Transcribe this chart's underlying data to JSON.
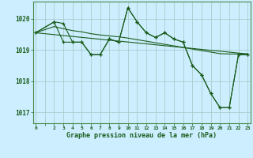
{
  "background_color": "#cceeff",
  "grid_color": "#aacccc",
  "line_color": "#1a5c1a",
  "text_color": "#1a5c1a",
  "xlabel": "Graphe pression niveau de la mer (hPa)",
  "ylim": [
    1016.65,
    1020.55
  ],
  "yticks": [
    1017,
    1018,
    1019,
    1020
  ],
  "xlim": [
    -0.3,
    23.3
  ],
  "xtick_labels": [
    "0",
    "",
    "2",
    "3",
    "4",
    "5",
    "6",
    "7",
    "8",
    "9",
    "10",
    "11",
    "12",
    "13",
    "14",
    "15",
    "16",
    "17",
    "18",
    "19",
    "20",
    "21",
    "22",
    "23"
  ],
  "xtick_positions": [
    0,
    1,
    2,
    3,
    4,
    5,
    6,
    7,
    8,
    9,
    10,
    11,
    12,
    13,
    14,
    15,
    16,
    17,
    18,
    19,
    20,
    21,
    22,
    23
  ],
  "series1_x": [
    0,
    2,
    3,
    4,
    5,
    6,
    7,
    8,
    9,
    10,
    11,
    12,
    13,
    14,
    15,
    16,
    17,
    18,
    19,
    20,
    21,
    22,
    23
  ],
  "series1_y": [
    1019.55,
    1019.9,
    1019.85,
    1019.25,
    1019.25,
    1018.85,
    1018.85,
    1019.35,
    1019.25,
    1020.35,
    1019.9,
    1019.55,
    1019.4,
    1019.55,
    1019.35,
    1019.25,
    1018.5,
    1018.2,
    1017.6,
    1017.15,
    1017.15,
    1018.85,
    1018.85
  ],
  "series2_x": [
    0,
    2,
    3,
    4,
    5,
    6,
    7,
    8,
    9,
    10,
    11,
    12,
    13,
    14,
    15,
    16,
    17,
    18,
    19,
    20,
    21,
    22,
    23
  ],
  "series2_y": [
    1019.55,
    1019.75,
    1019.68,
    1019.62,
    1019.58,
    1019.52,
    1019.48,
    1019.45,
    1019.42,
    1019.38,
    1019.33,
    1019.28,
    1019.23,
    1019.18,
    1019.13,
    1019.08,
    1019.03,
    1018.98,
    1018.93,
    1018.88,
    1018.87,
    1018.87,
    1018.87
  ],
  "series3_x": [
    0,
    23
  ],
  "series3_y": [
    1019.55,
    1018.87
  ],
  "series4_x": [
    0,
    2,
    3,
    4,
    5,
    6,
    7,
    8,
    9,
    10,
    11,
    12,
    13,
    14,
    15,
    16,
    17,
    18,
    19,
    20,
    21,
    22,
    23
  ],
  "series4_y": [
    1019.55,
    1019.9,
    1019.25,
    1019.25,
    1019.25,
    1018.85,
    1018.85,
    1019.35,
    1019.25,
    1020.35,
    1019.9,
    1019.55,
    1019.4,
    1019.55,
    1019.35,
    1019.25,
    1018.5,
    1018.2,
    1017.6,
    1017.15,
    1017.15,
    1018.85,
    1018.85
  ]
}
